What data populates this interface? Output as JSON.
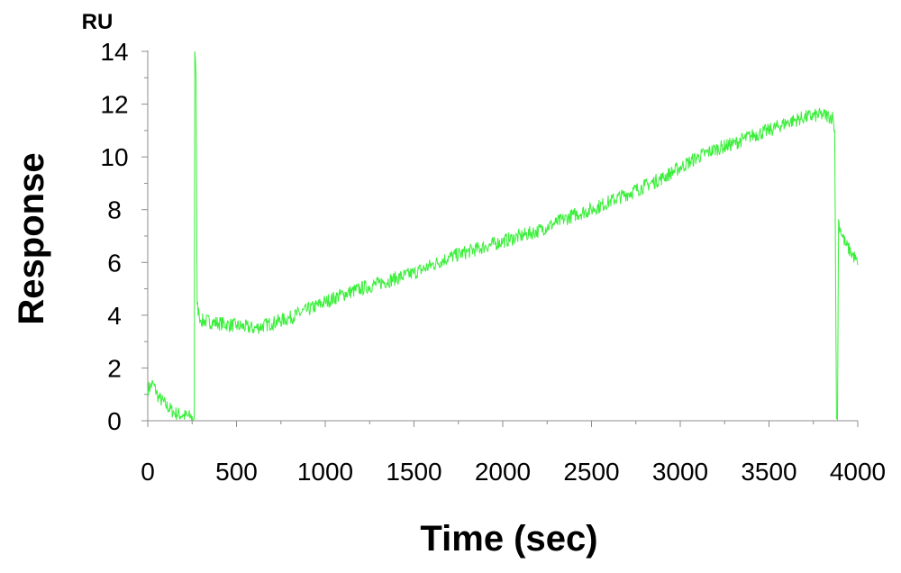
{
  "chart_data": {
    "type": "line",
    "title": "",
    "xlabel": "Time (sec)",
    "ylabel": "Response",
    "y_unit": "RU",
    "xlim": [
      0,
      4000
    ],
    "ylim": [
      0,
      14
    ],
    "x_ticks": [
      "0",
      "500",
      "1000",
      "1500",
      "2000",
      "2500",
      "3000",
      "3500",
      "4000"
    ],
    "y_ticks": [
      "0",
      "2",
      "4",
      "6",
      "8",
      "10",
      "12",
      "14"
    ],
    "grid": false,
    "legend": "none",
    "series_color": "#39ef39",
    "series": [
      {
        "x": [
          0,
          30,
          60,
          100,
          150,
          200,
          240,
          262,
          265,
          272,
          278,
          290,
          300,
          400,
          500,
          600,
          700,
          800,
          900,
          1000,
          1100,
          1200,
          1300,
          1400,
          1500,
          1600,
          1700,
          1800,
          1900,
          2000,
          2100,
          2200,
          2300,
          2400,
          2500,
          2600,
          2700,
          2800,
          2900,
          3000,
          3100,
          3200,
          3300,
          3400,
          3500,
          3600,
          3700,
          3800,
          3860,
          3870,
          3880,
          3886,
          3892,
          3900,
          3930,
          3960,
          3990,
          4000
        ],
        "y": [
          1.2,
          1.4,
          0.9,
          0.6,
          0.3,
          0.2,
          0.15,
          0.1,
          14,
          13,
          4.4,
          4.0,
          3.8,
          3.7,
          3.6,
          3.5,
          3.7,
          3.9,
          4.2,
          4.5,
          4.8,
          5.0,
          5.2,
          5.4,
          5.6,
          5.9,
          6.2,
          6.4,
          6.6,
          6.8,
          7.0,
          7.2,
          7.5,
          7.8,
          8.0,
          8.3,
          8.6,
          8.9,
          9.2,
          9.6,
          10.0,
          10.3,
          10.5,
          10.8,
          11.0,
          11.3,
          11.5,
          11.6,
          11.5,
          11.0,
          0.1,
          0.0,
          7.6,
          7.3,
          6.7,
          6.4,
          6.1,
          5.9
        ]
      }
    ]
  }
}
